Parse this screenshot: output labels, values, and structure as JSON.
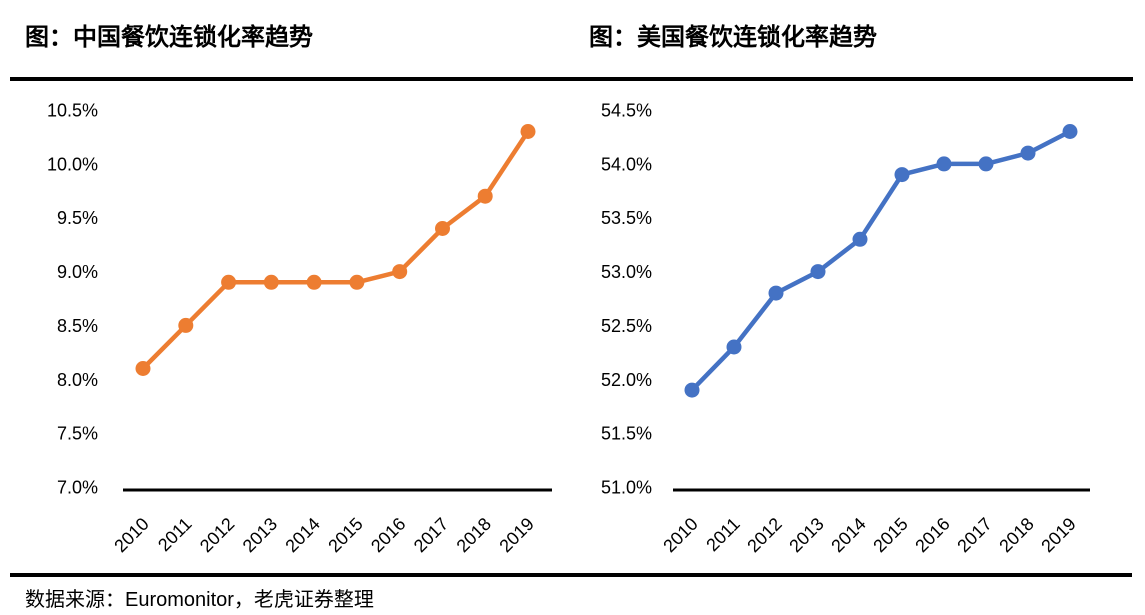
{
  "source_note": "数据来源：Euromonitor，老虎证券整理",
  "colors": {
    "china_line": "#ED7D31",
    "usa_line": "#4472C4",
    "axis": "#000000",
    "divider": "#000000",
    "text": "#000000",
    "background": "#FFFFFF"
  },
  "chart_data": [
    {
      "type": "line",
      "title": "图：中国餐饮连锁化率趋势",
      "categories": [
        "2010",
        "2011",
        "2012",
        "2013",
        "2014",
        "2015",
        "2016",
        "2017",
        "2018",
        "2019"
      ],
      "series": [
        {
          "name": "中国餐饮连锁化率",
          "values": [
            8.1,
            8.5,
            8.9,
            8.9,
            8.9,
            8.9,
            9.0,
            9.4,
            9.7,
            10.3
          ]
        }
      ],
      "xlabel": "",
      "ylabel": "",
      "ylim": [
        7.0,
        10.5
      ],
      "ytick_step": 0.5,
      "yticks": [
        "10.5%",
        "10.0%",
        "9.5%",
        "9.0%",
        "8.5%",
        "8.0%",
        "7.5%",
        "7.0%"
      ],
      "grid": false,
      "legend_position": "none",
      "line_color": "#ED7D31",
      "marker": "circle"
    },
    {
      "type": "line",
      "title": "图：美国餐饮连锁化率趋势",
      "categories": [
        "2010",
        "2011",
        "2012",
        "2013",
        "2014",
        "2015",
        "2016",
        "2017",
        "2018",
        "2019"
      ],
      "series": [
        {
          "name": "美国餐饮连锁化率",
          "values": [
            51.9,
            52.3,
            52.8,
            53.0,
            53.3,
            53.9,
            54.0,
            54.0,
            54.1,
            54.3
          ]
        }
      ],
      "xlabel": "",
      "ylabel": "",
      "ylim": [
        51.0,
        54.5
      ],
      "ytick_step": 0.5,
      "yticks": [
        "54.5%",
        "54.0%",
        "53.5%",
        "53.0%",
        "52.5%",
        "52.0%",
        "51.5%",
        "51.0%"
      ],
      "grid": false,
      "legend_position": "none",
      "line_color": "#4472C4",
      "marker": "circle"
    }
  ]
}
